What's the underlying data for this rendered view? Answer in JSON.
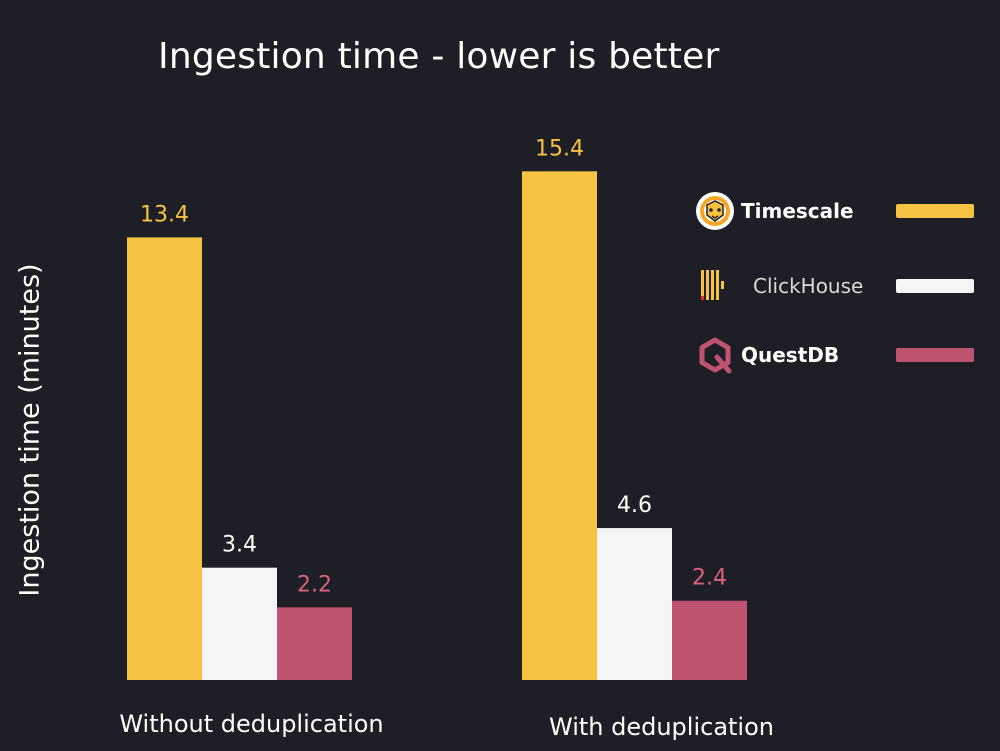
{
  "chart_data": {
    "type": "bar",
    "title": "Ingestion time - lower is better",
    "ylabel": "Ingestion time (minutes)",
    "xlabel": "",
    "ylim": [
      0,
      16.5
    ],
    "grid": false,
    "legend_position": "right",
    "categories": [
      "Without deduplication",
      "With deduplication"
    ],
    "series": [
      {
        "name": "Timescale",
        "color": "#f6c242",
        "label_color": "#f6c242",
        "values": [
          13.4,
          15.4
        ]
      },
      {
        "name": "ClickHouse",
        "color": "#f5f5f5",
        "label_color": "#ffffff",
        "values": [
          3.4,
          4.6
        ]
      },
      {
        "name": "QuestDB",
        "color": "#c0536f",
        "label_color": "#d9607e",
        "values": [
          2.2,
          2.4
        ]
      }
    ]
  },
  "legend": {
    "items": [
      {
        "name": "Timescale",
        "icon": "timescale-tiger-logo"
      },
      {
        "name": "ClickHouse",
        "icon": "clickhouse-bars-logo"
      },
      {
        "name": "QuestDB",
        "icon": "questdb-q-logo"
      }
    ]
  },
  "colors": {
    "background": "#1e1f26",
    "text": "#ffffff"
  }
}
